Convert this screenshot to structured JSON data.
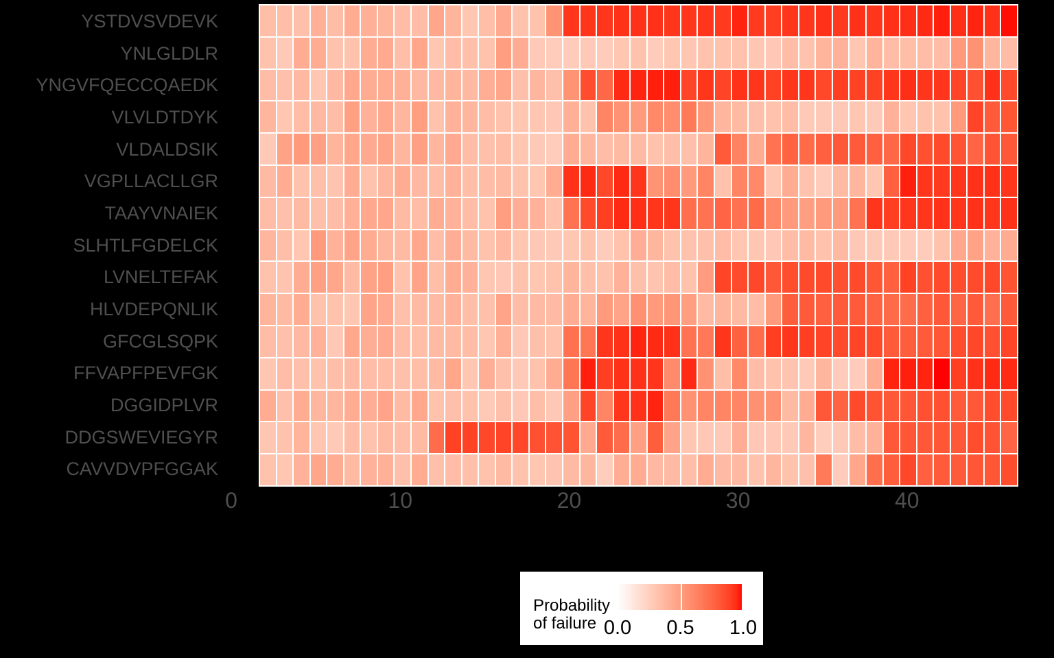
{
  "figure": {
    "background_color": "#000000",
    "gridline_color": "#FFFFFF",
    "axis_text_color": "#4F4F4F",
    "legend_text_color": "#000000"
  },
  "legend": {
    "title_line1": "Probability",
    "title_line2": "of failure",
    "tick_labels": [
      "0.0",
      "0.5",
      "1.0"
    ],
    "background": "#FFFFFF",
    "gradient_low": "#FFFFFF",
    "gradient_high": "#FF0000"
  },
  "axes": {
    "x_tick_labels": [
      "0",
      "10",
      "20",
      "30",
      "40"
    ],
    "x_tick_values": [
      0,
      10,
      20,
      30,
      40
    ]
  },
  "chart_data": {
    "type": "heatmap",
    "title": "",
    "xlabel": "",
    "ylabel": "",
    "colorbar_label": "Probability of failure",
    "color_domain": [
      0.0,
      1.0
    ],
    "low_color": "#FFFFFF",
    "high_color": "#FF0000",
    "x_range_columns": [
      2,
      46
    ],
    "n_columns": 45,
    "x_axis_ticks": [
      0,
      10,
      20,
      30,
      40
    ],
    "categories": [
      "YSTDVSVDEVK",
      "YNLGLDLR",
      "YNGVFQECCQAEDK",
      "VLVLDTDYK",
      "VLDALDSIK",
      "VGPLLACLLGR",
      "TAAYVNAIEK",
      "SLHTLFGDELCK",
      "LVNELTEFAK",
      "HLVDEPQNLIK",
      "GFCGLSQPK",
      "FFVAPFPEVFGK",
      "DGGIDPLVR",
      "DDGSWEVIEGYR",
      "CAVVDVPFGGAK"
    ],
    "series": [
      {
        "name": "YSTDVSVDEVK",
        "values": [
          0.34,
          0.34,
          0.33,
          0.41,
          0.35,
          0.43,
          0.41,
          0.39,
          0.35,
          0.35,
          0.46,
          0.39,
          0.3,
          0.34,
          0.44,
          0.32,
          0.32,
          0.55,
          0.92,
          0.92,
          0.92,
          0.93,
          0.93,
          0.93,
          0.92,
          0.92,
          0.92,
          0.91,
          0.96,
          0.91,
          0.9,
          0.92,
          0.92,
          0.93,
          0.91,
          0.93,
          0.92,
          0.93,
          0.94,
          0.95,
          0.97,
          0.94,
          0.96,
          0.93,
          0.99
        ]
      },
      {
        "name": "YNLGLDLR",
        "values": [
          0.32,
          0.28,
          0.43,
          0.43,
          0.32,
          0.32,
          0.43,
          0.44,
          0.34,
          0.46,
          0.3,
          0.35,
          0.33,
          0.32,
          0.5,
          0.43,
          0.28,
          0.27,
          0.27,
          0.28,
          0.27,
          0.3,
          0.32,
          0.27,
          0.3,
          0.3,
          0.32,
          0.32,
          0.32,
          0.3,
          0.29,
          0.35,
          0.32,
          0.39,
          0.4,
          0.3,
          0.39,
          0.35,
          0.34,
          0.35,
          0.35,
          0.52,
          0.56,
          0.38,
          0.35
        ]
      },
      {
        "name": "YNGVFQECCQAEDK",
        "values": [
          0.35,
          0.33,
          0.37,
          0.3,
          0.37,
          0.45,
          0.43,
          0.43,
          0.41,
          0.37,
          0.37,
          0.39,
          0.37,
          0.42,
          0.46,
          0.33,
          0.38,
          0.33,
          0.55,
          0.85,
          0.75,
          0.95,
          0.96,
          0.97,
          0.97,
          0.88,
          0.92,
          0.88,
          0.93,
          0.92,
          0.89,
          0.92,
          0.92,
          0.87,
          0.9,
          0.89,
          0.89,
          0.92,
          0.94,
          0.92,
          0.92,
          0.88,
          0.84,
          0.93,
          0.86
        ]
      },
      {
        "name": "VLVLDTDYK",
        "values": [
          0.38,
          0.3,
          0.35,
          0.37,
          0.35,
          0.49,
          0.4,
          0.45,
          0.38,
          0.5,
          0.32,
          0.4,
          0.38,
          0.35,
          0.32,
          0.3,
          0.3,
          0.29,
          0.41,
          0.32,
          0.62,
          0.56,
          0.52,
          0.6,
          0.58,
          0.67,
          0.54,
          0.38,
          0.36,
          0.33,
          0.32,
          0.35,
          0.28,
          0.28,
          0.29,
          0.3,
          0.28,
          0.4,
          0.3,
          0.32,
          0.32,
          0.52,
          0.88,
          0.8,
          0.82
        ]
      },
      {
        "name": "VLDALDSIK",
        "values": [
          0.28,
          0.48,
          0.52,
          0.49,
          0.39,
          0.46,
          0.44,
          0.47,
          0.38,
          0.49,
          0.38,
          0.44,
          0.35,
          0.33,
          0.35,
          0.3,
          0.28,
          0.27,
          0.43,
          0.38,
          0.35,
          0.36,
          0.36,
          0.32,
          0.34,
          0.33,
          0.39,
          0.8,
          0.63,
          0.43,
          0.7,
          0.77,
          0.74,
          0.78,
          0.81,
          0.8,
          0.78,
          0.75,
          0.87,
          0.84,
          0.86,
          0.83,
          0.76,
          0.83,
          0.81
        ]
      },
      {
        "name": "VGPLLACLLGR",
        "values": [
          0.36,
          0.43,
          0.32,
          0.33,
          0.31,
          0.43,
          0.32,
          0.38,
          0.43,
          0.37,
          0.35,
          0.4,
          0.34,
          0.35,
          0.36,
          0.32,
          0.3,
          0.43,
          0.93,
          0.95,
          0.87,
          0.95,
          0.92,
          0.55,
          0.58,
          0.52,
          0.62,
          0.32,
          0.62,
          0.6,
          0.3,
          0.43,
          0.32,
          0.27,
          0.36,
          0.38,
          0.3,
          0.78,
          0.97,
          0.92,
          0.91,
          0.92,
          0.93,
          0.93,
          0.92
        ]
      },
      {
        "name": "TAAYVNAIEK",
        "values": [
          0.35,
          0.33,
          0.36,
          0.33,
          0.35,
          0.41,
          0.45,
          0.46,
          0.36,
          0.35,
          0.43,
          0.4,
          0.35,
          0.32,
          0.5,
          0.42,
          0.4,
          0.32,
          0.7,
          0.86,
          0.9,
          0.95,
          0.94,
          0.92,
          0.92,
          0.72,
          0.7,
          0.76,
          0.71,
          0.74,
          0.6,
          0.52,
          0.5,
          0.52,
          0.52,
          0.7,
          0.92,
          0.9,
          0.92,
          0.92,
          0.93,
          0.92,
          0.93,
          0.92,
          0.93
        ]
      },
      {
        "name": "SLHTLFGDELCK",
        "values": [
          0.38,
          0.34,
          0.3,
          0.52,
          0.4,
          0.47,
          0.43,
          0.38,
          0.36,
          0.45,
          0.35,
          0.42,
          0.36,
          0.32,
          0.37,
          0.3,
          0.29,
          0.28,
          0.3,
          0.32,
          0.27,
          0.32,
          0.42,
          0.38,
          0.32,
          0.32,
          0.33,
          0.35,
          0.3,
          0.3,
          0.29,
          0.35,
          0.36,
          0.32,
          0.37,
          0.29,
          0.28,
          0.28,
          0.27,
          0.27,
          0.32,
          0.45,
          0.48,
          0.4,
          0.43
        ]
      },
      {
        "name": "LVNELTEFAK",
        "values": [
          0.32,
          0.31,
          0.43,
          0.49,
          0.46,
          0.36,
          0.48,
          0.5,
          0.32,
          0.47,
          0.34,
          0.43,
          0.4,
          0.3,
          0.29,
          0.32,
          0.3,
          0.32,
          0.39,
          0.33,
          0.32,
          0.4,
          0.33,
          0.31,
          0.35,
          0.32,
          0.51,
          0.88,
          0.86,
          0.87,
          0.81,
          0.85,
          0.86,
          0.86,
          0.84,
          0.86,
          0.82,
          0.78,
          0.89,
          0.84,
          0.86,
          0.85,
          0.86,
          0.87,
          0.83
        ]
      },
      {
        "name": "HLVDEPQNLIK",
        "values": [
          0.39,
          0.36,
          0.43,
          0.32,
          0.32,
          0.3,
          0.47,
          0.44,
          0.33,
          0.36,
          0.36,
          0.4,
          0.34,
          0.33,
          0.47,
          0.35,
          0.36,
          0.36,
          0.43,
          0.39,
          0.52,
          0.47,
          0.57,
          0.52,
          0.54,
          0.5,
          0.36,
          0.38,
          0.36,
          0.35,
          0.52,
          0.79,
          0.8,
          0.78,
          0.8,
          0.8,
          0.77,
          0.74,
          0.73,
          0.78,
          0.81,
          0.76,
          0.8,
          0.72,
          0.8
        ]
      },
      {
        "name": "GFCGLSQPK",
        "values": [
          0.35,
          0.33,
          0.37,
          0.4,
          0.29,
          0.45,
          0.42,
          0.44,
          0.35,
          0.34,
          0.36,
          0.36,
          0.35,
          0.3,
          0.41,
          0.29,
          0.33,
          0.32,
          0.71,
          0.69,
          0.92,
          0.93,
          0.96,
          0.95,
          0.93,
          0.7,
          0.68,
          0.92,
          0.78,
          0.73,
          0.9,
          0.92,
          0.9,
          0.88,
          0.86,
          0.88,
          0.86,
          0.8,
          0.79,
          0.8,
          0.82,
          0.85,
          0.87,
          0.84,
          0.88
        ]
      },
      {
        "name": "FFVAPFPEVFGK",
        "values": [
          0.3,
          0.35,
          0.33,
          0.32,
          0.34,
          0.36,
          0.35,
          0.35,
          0.33,
          0.34,
          0.36,
          0.46,
          0.3,
          0.42,
          0.33,
          0.28,
          0.32,
          0.43,
          0.69,
          0.97,
          0.9,
          0.93,
          0.93,
          0.92,
          0.59,
          0.95,
          0.56,
          0.34,
          0.6,
          0.35,
          0.32,
          0.31,
          0.28,
          0.38,
          0.27,
          0.27,
          0.43,
          0.96,
          0.97,
          0.96,
          1.0,
          0.9,
          0.93,
          0.95,
          0.95
        ]
      },
      {
        "name": "DGGIDPLVR",
        "values": [
          0.43,
          0.33,
          0.43,
          0.38,
          0.38,
          0.43,
          0.42,
          0.47,
          0.36,
          0.45,
          0.32,
          0.33,
          0.32,
          0.28,
          0.33,
          0.29,
          0.34,
          0.29,
          0.49,
          0.88,
          0.62,
          0.92,
          0.93,
          0.96,
          0.68,
          0.56,
          0.62,
          0.62,
          0.62,
          0.57,
          0.56,
          0.36,
          0.43,
          0.81,
          0.77,
          0.86,
          0.83,
          0.81,
          0.82,
          0.84,
          0.84,
          0.8,
          0.81,
          0.85,
          0.86
        ]
      },
      {
        "name": "DDGSWEVIEGYR",
        "values": [
          0.3,
          0.32,
          0.39,
          0.3,
          0.28,
          0.35,
          0.32,
          0.36,
          0.34,
          0.36,
          0.73,
          0.89,
          0.89,
          0.87,
          0.88,
          0.87,
          0.84,
          0.83,
          0.83,
          0.44,
          0.8,
          0.73,
          0.49,
          0.79,
          0.47,
          0.3,
          0.29,
          0.28,
          0.42,
          0.29,
          0.29,
          0.28,
          0.38,
          0.26,
          0.28,
          0.35,
          0.4,
          0.81,
          0.82,
          0.81,
          0.82,
          0.81,
          0.85,
          0.83,
          0.76
        ]
      },
      {
        "name": "CAVVDVPFGGAK",
        "values": [
          0.32,
          0.3,
          0.4,
          0.46,
          0.43,
          0.36,
          0.4,
          0.41,
          0.33,
          0.43,
          0.33,
          0.35,
          0.33,
          0.32,
          0.36,
          0.32,
          0.3,
          0.31,
          0.36,
          0.38,
          0.26,
          0.42,
          0.43,
          0.37,
          0.36,
          0.34,
          0.43,
          0.36,
          0.37,
          0.32,
          0.38,
          0.32,
          0.33,
          0.67,
          0.27,
          0.46,
          0.72,
          0.79,
          0.87,
          0.78,
          0.8,
          0.8,
          0.82,
          0.82,
          0.85
        ]
      }
    ]
  }
}
